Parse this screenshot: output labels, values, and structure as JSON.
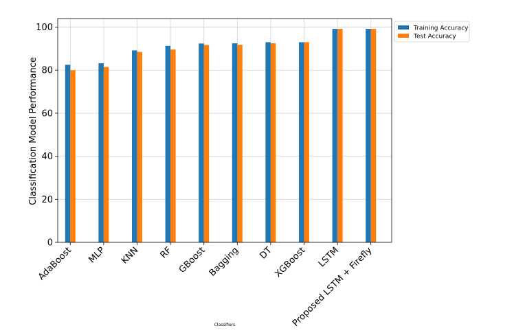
{
  "chart_data": {
    "type": "bar",
    "xlabel": "Classifiers",
    "ylabel": "Classification Model Performance",
    "ylim": [
      0,
      104
    ],
    "yticks": [
      0,
      20,
      40,
      60,
      80,
      100
    ],
    "grid": true,
    "legend_position": "outside-top-right",
    "categories": [
      "AdaBoost",
      "MLP",
      "KNN",
      "RF",
      "GBoost",
      "Bagging",
      "DT",
      "XGBoost",
      "LSTM",
      "Proposed LSTM + Firefly"
    ],
    "series": [
      {
        "name": "Training Accuracy",
        "color": "#1f77b4",
        "values": [
          82.5,
          83.2,
          89.2,
          91.3,
          92.4,
          92.5,
          93.0,
          93.0,
          99.2,
          99.2
        ]
      },
      {
        "name": "Test Accuracy",
        "color": "#ff7f0e",
        "values": [
          80.0,
          81.5,
          88.5,
          89.6,
          91.7,
          91.8,
          92.5,
          93.0,
          99.2,
          99.2
        ]
      }
    ]
  }
}
